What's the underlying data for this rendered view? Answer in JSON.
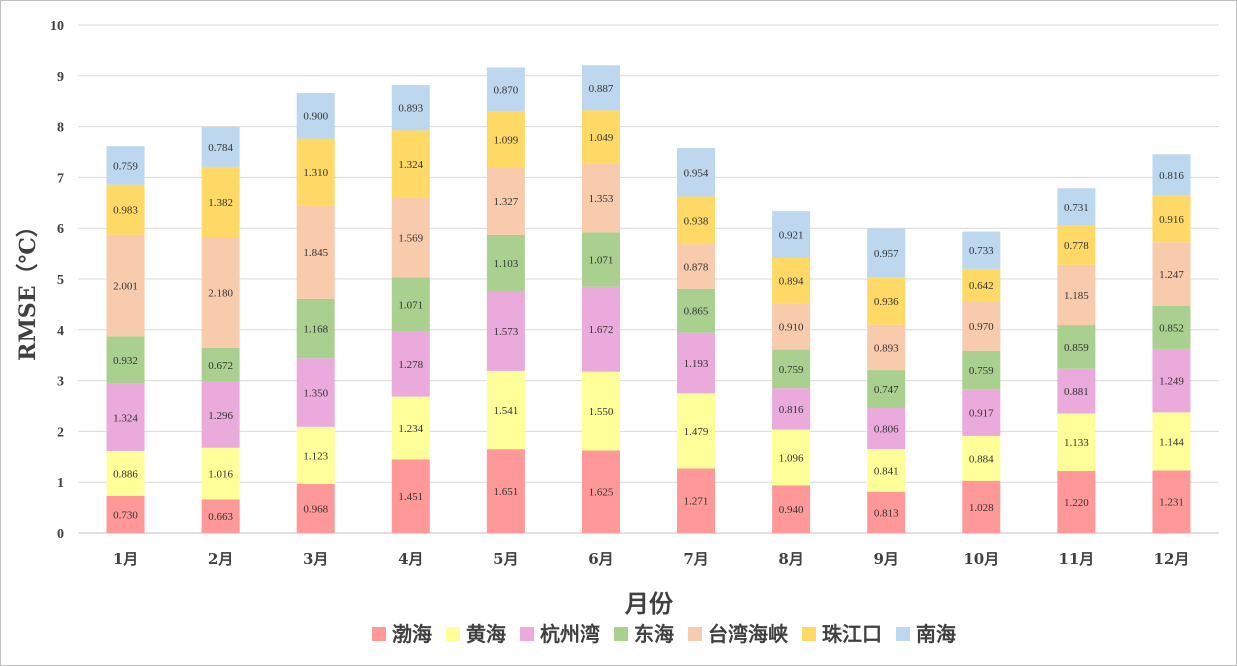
{
  "chart_data": {
    "type": "bar",
    "stacked": true,
    "xlabel": "月份",
    "ylabel": "RMSE（℃）",
    "ylim": [
      0,
      10
    ],
    "yticks": [
      "0",
      "1",
      "2",
      "3",
      "4",
      "5",
      "6",
      "7",
      "8",
      "9",
      "10"
    ],
    "grid": true,
    "legend_position": "bottom",
    "categories": [
      "1月",
      "2月",
      "3月",
      "4月",
      "5月",
      "6月",
      "7月",
      "8月",
      "9月",
      "10月",
      "11月",
      "12月"
    ],
    "series": [
      {
        "name": "渤海",
        "color": "#ff9999",
        "values": [
          0.73,
          0.663,
          0.968,
          1.451,
          1.651,
          1.625,
          1.271,
          0.94,
          0.813,
          1.028,
          1.22,
          1.231
        ],
        "labels": [
          "0.730",
          "0.663",
          "0.968",
          "1.451",
          "1.651",
          "1.625",
          "1.271",
          "0.940",
          "0.813",
          "1.028",
          "1.220",
          "1.231"
        ]
      },
      {
        "name": "黄海",
        "color": "#ffff99",
        "values": [
          0.886,
          1.016,
          1.123,
          1.234,
          1.541,
          1.55,
          1.479,
          1.096,
          0.841,
          0.884,
          1.133,
          1.144
        ],
        "labels": [
          "0.886",
          "1.016",
          "1.123",
          "1.234",
          "1.541",
          "1.550",
          "1.479",
          "1.096",
          "0.841",
          "0.884",
          "1.133",
          "1.144"
        ]
      },
      {
        "name": "杭州湾",
        "color": "#eaaadc",
        "values": [
          1.324,
          1.296,
          1.35,
          1.278,
          1.573,
          1.672,
          1.193,
          0.816,
          0.806,
          0.917,
          0.881,
          1.249
        ],
        "labels": [
          "1.324",
          "1.296",
          "1.350",
          "1.278",
          "1.573",
          "1.672",
          "1.193",
          "0.816",
          "0.806",
          "0.917",
          "0.881",
          "1.249"
        ]
      },
      {
        "name": "东海",
        "color": "#a9d08e",
        "values": [
          0.932,
          0.672,
          1.168,
          1.071,
          1.103,
          1.071,
          0.865,
          0.759,
          0.747,
          0.759,
          0.859,
          0.852
        ],
        "labels": [
          "0.932",
          "0.672",
          "1.168",
          "1.071",
          "1.103",
          "1.071",
          "0.865",
          "0.759",
          "0.747",
          "0.759",
          "0.859",
          "0.852"
        ]
      },
      {
        "name": "台湾海峡",
        "color": "#f8cbad",
        "values": [
          2.001,
          2.18,
          1.845,
          1.569,
          1.327,
          1.353,
          0.878,
          0.91,
          0.893,
          0.97,
          1.185,
          1.247
        ],
        "labels": [
          "2.001",
          "2.180",
          "1.845",
          "1.569",
          "1.327",
          "1.353",
          "0.878",
          "0.910",
          "0.893",
          "0.970",
          "1.185",
          "1.247"
        ]
      },
      {
        "name": "珠江口",
        "color": "#ffd966",
        "values": [
          0.983,
          1.382,
          1.31,
          1.324,
          1.099,
          1.049,
          0.938,
          0.894,
          0.936,
          0.642,
          0.778,
          0.916
        ],
        "labels": [
          "0.983",
          "1.382",
          "1.310",
          "1.324",
          "1.099",
          "1.049",
          "0.938",
          "0.894",
          "0.936",
          "0.642",
          "0.778",
          "0.916"
        ]
      },
      {
        "name": "南海",
        "color": "#bdd7ee",
        "values": [
          0.759,
          0.784,
          0.9,
          0.893,
          0.87,
          0.887,
          0.954,
          0.921,
          0.957,
          0.733,
          0.731,
          0.816
        ],
        "labels": [
          "0.759",
          "0.784",
          "0.900",
          "0.893",
          "0.870",
          "0.887",
          "0.954",
          "0.921",
          "0.957",
          "0.733",
          "0.731",
          "0.816"
        ]
      }
    ]
  },
  "colors": {
    "grid": "#d9d9d9",
    "axis": "#bfbfbf",
    "text": "#404040"
  }
}
